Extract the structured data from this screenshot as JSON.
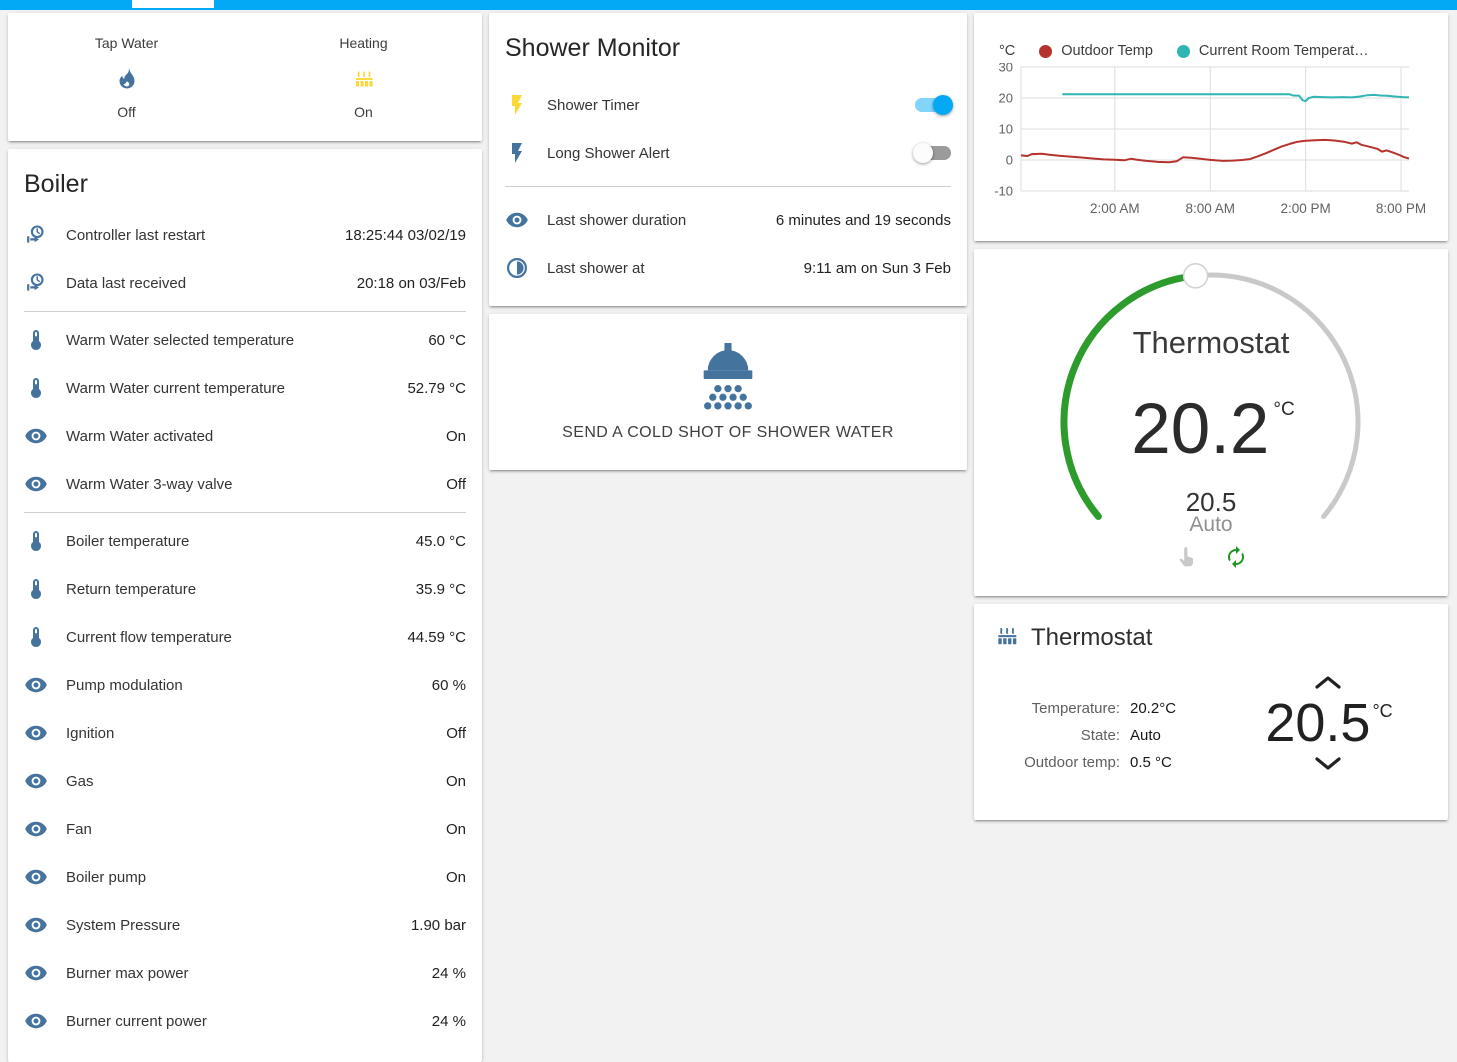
{
  "header": {
    "bar_color": "#03a9f4"
  },
  "glance_card": {
    "items": [
      {
        "name": "Tap Water",
        "icon": "fire-icon",
        "icon_color": "#44739e",
        "state": "Off"
      },
      {
        "name": "Heating",
        "icon": "radiator-icon",
        "icon_color": "#fdd835",
        "state": "On"
      }
    ]
  },
  "boiler_card": {
    "title": "Boiler",
    "sections": [
      {
        "rows": [
          {
            "icon": "clock-start-icon",
            "label": "Controller last restart",
            "value": "18:25:44 03/02/19"
          },
          {
            "icon": "clock-start-icon",
            "label": "Data last received",
            "value": "20:18 on 03/Feb"
          }
        ]
      },
      {
        "rows": [
          {
            "icon": "thermometer-icon",
            "label": "Warm Water selected temperature",
            "value": "60 °C"
          },
          {
            "icon": "thermometer-icon",
            "label": "Warm Water current temperature",
            "value": "52.79 °C"
          },
          {
            "icon": "eye-icon",
            "label": "Warm Water activated",
            "value": "On"
          },
          {
            "icon": "eye-icon",
            "label": "Warm Water 3-way valve",
            "value": "Off"
          }
        ]
      },
      {
        "rows": [
          {
            "icon": "thermometer-icon",
            "label": "Boiler temperature",
            "value": "45.0 °C"
          },
          {
            "icon": "thermometer-icon",
            "label": "Return temperature",
            "value": "35.9 °C"
          },
          {
            "icon": "thermometer-icon",
            "label": "Current flow temperature",
            "value": "44.59 °C"
          },
          {
            "icon": "eye-icon",
            "label": "Pump modulation",
            "value": "60 %"
          },
          {
            "icon": "eye-icon",
            "label": "Ignition",
            "value": "Off"
          },
          {
            "icon": "eye-icon",
            "label": "Gas",
            "value": "On"
          },
          {
            "icon": "eye-icon",
            "label": "Fan",
            "value": "On"
          },
          {
            "icon": "eye-icon",
            "label": "Boiler pump",
            "value": "On"
          },
          {
            "icon": "eye-icon",
            "label": "System Pressure",
            "value": "1.90 bar"
          },
          {
            "icon": "eye-icon",
            "label": "Burner max power",
            "value": "24 %"
          },
          {
            "icon": "eye-icon",
            "label": "Burner current power",
            "value": "24 %"
          }
        ]
      }
    ]
  },
  "shower_monitor_card": {
    "title": "Shower Monitor",
    "toggle_rows": [
      {
        "icon": "flash-icon",
        "icon_color": "#fdd835",
        "label": "Shower Timer",
        "on": true
      },
      {
        "icon": "flash-icon",
        "icon_color": "#44739e",
        "label": "Long Shower Alert",
        "on": false
      }
    ],
    "info_rows": [
      {
        "icon": "eye-icon",
        "icon_color": "#44739e",
        "label": "Last shower duration",
        "value": "6 minutes and 19 seconds"
      },
      {
        "icon": "clock-pie-icon",
        "icon_color": "#44739e",
        "label": "Last shower at",
        "value": "9:11 am on Sun 3 Feb"
      }
    ]
  },
  "shower_button_card": {
    "icon": "shower-head-icon",
    "icon_color": "#44739e",
    "label": "SEND A COLD SHOT OF SHOWER WATER"
  },
  "chart_data": {
    "type": "line",
    "title": "",
    "unit": "°C",
    "grid": true,
    "legend_position": "top",
    "ylim": [
      -10,
      30
    ],
    "yticks": [
      30,
      20,
      10,
      0,
      -10
    ],
    "x_span_hours": 24.4,
    "xticks": [
      {
        "x": 5.9,
        "label": "2:00 AM"
      },
      {
        "x": 11.9,
        "label": "8:00 AM"
      },
      {
        "x": 17.9,
        "label": "2:00 PM"
      },
      {
        "x": 23.9,
        "label": "8:00 PM"
      }
    ],
    "series": [
      {
        "name": "Outdoor Temp",
        "color": "#b5332d",
        "points": [
          [
            0,
            1.5
          ],
          [
            0.4,
            1.3
          ],
          [
            0.7,
            1.9
          ],
          [
            1.3,
            2.0
          ],
          [
            1.8,
            1.7
          ],
          [
            2.4,
            1.4
          ],
          [
            3.1,
            1.1
          ],
          [
            3.8,
            0.8
          ],
          [
            4.5,
            0.5
          ],
          [
            5.2,
            0.2
          ],
          [
            5.9,
            0.1
          ],
          [
            6.5,
            -0.1
          ],
          [
            6.9,
            0.4
          ],
          [
            7.3,
            0.1
          ],
          [
            7.9,
            -0.3
          ],
          [
            8.6,
            -0.6
          ],
          [
            9.3,
            -0.7
          ],
          [
            9.8,
            -0.4
          ],
          [
            10.2,
            0.9
          ],
          [
            10.7,
            0.7
          ],
          [
            11.3,
            0.4
          ],
          [
            11.8,
            0.1
          ],
          [
            12.2,
            -0.1
          ],
          [
            12.7,
            -0.3
          ],
          [
            13.3,
            -0.2
          ],
          [
            13.9,
            0.0
          ],
          [
            14.4,
            0.3
          ],
          [
            14.9,
            1.2
          ],
          [
            15.4,
            2.2
          ],
          [
            15.9,
            3.3
          ],
          [
            16.4,
            4.4
          ],
          [
            16.9,
            5.2
          ],
          [
            17.4,
            5.9
          ],
          [
            17.9,
            6.2
          ],
          [
            18.5,
            6.4
          ],
          [
            19.1,
            6.5
          ],
          [
            19.7,
            6.3
          ],
          [
            20.3,
            5.9
          ],
          [
            20.8,
            5.3
          ],
          [
            21.1,
            5.7
          ],
          [
            21.4,
            4.9
          ],
          [
            21.9,
            4.3
          ],
          [
            22.4,
            3.6
          ],
          [
            22.7,
            2.7
          ],
          [
            23.0,
            3.1
          ],
          [
            23.4,
            2.4
          ],
          [
            23.8,
            1.6
          ],
          [
            24.1,
            0.9
          ],
          [
            24.4,
            0.5
          ]
        ]
      },
      {
        "name": "Current Room Temperat…",
        "color": "#2fb6b3",
        "points": [
          [
            2.6,
            21.2
          ],
          [
            8.0,
            21.2
          ],
          [
            13.0,
            21.2
          ],
          [
            16.9,
            21.2
          ],
          [
            17.1,
            20.8
          ],
          [
            17.5,
            20.7
          ],
          [
            17.7,
            19.3
          ],
          [
            17.9,
            19.0
          ],
          [
            18.1,
            20.0
          ],
          [
            18.4,
            20.4
          ],
          [
            19.0,
            20.3
          ],
          [
            19.6,
            20.2
          ],
          [
            20.2,
            20.3
          ],
          [
            20.8,
            20.2
          ],
          [
            21.3,
            20.5
          ],
          [
            21.8,
            20.9
          ],
          [
            22.2,
            21.0
          ],
          [
            22.6,
            20.8
          ],
          [
            23.0,
            20.7
          ],
          [
            23.5,
            20.5
          ],
          [
            24.0,
            20.3
          ],
          [
            24.4,
            20.2
          ]
        ]
      }
    ]
  },
  "dial_card": {
    "title": "Thermostat",
    "current": "20.2",
    "unit": "°C",
    "target": "20.5",
    "mode": "Auto",
    "arc_color": "#2d9c2d"
  },
  "thermostat_card": {
    "title": "Thermostat",
    "icon": "radiator-icon",
    "icon_color": "#44739e",
    "rows": [
      {
        "label": "Temperature:",
        "value": "20.2°C"
      },
      {
        "label": "State:",
        "value": "Auto"
      },
      {
        "label": "Outdoor temp:",
        "value": "0.5 °C"
      }
    ],
    "target": "20.5",
    "target_unit": "°C"
  },
  "colors": {
    "icon_blue": "#44739e",
    "active_yellow": "#fdd835",
    "toggle_on": "#03a9f4",
    "toggle_track_on": "#81d4fa",
    "dial_green": "#2d9c2d",
    "autorenew_green": "#209620",
    "hand_gray": "#c9c9c9"
  }
}
